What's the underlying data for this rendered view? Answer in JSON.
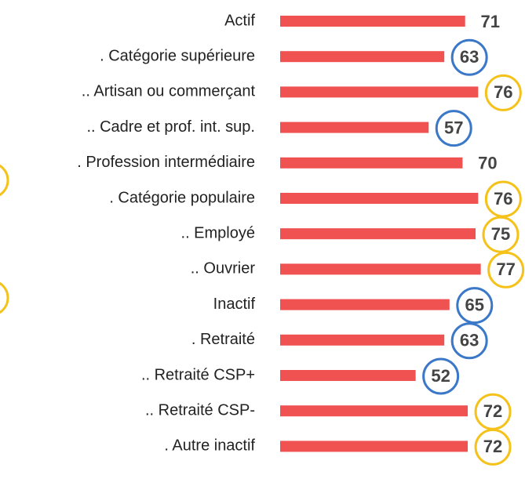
{
  "chart_data": {
    "type": "bar",
    "orientation": "horizontal",
    "categories": [
      "Actif",
      ". Catégorie supérieure",
      ".. Artisan ou commerçant",
      ".. Cadre et prof. int. sup.",
      ". Profession intermédiaire",
      ". Catégorie populaire",
      ".. Employé",
      ".. Ouvrier",
      "Inactif",
      ". Retraité",
      ".. Retraité CSP+",
      ".. Retraité CSP-",
      ". Autre inactif"
    ],
    "values": [
      71,
      63,
      76,
      57,
      70,
      76,
      75,
      77,
      65,
      63,
      52,
      72,
      72
    ],
    "color": "#f05252",
    "circle_colors": [
      null,
      "#3b78c8",
      "#f5c21b",
      "#3b78c8",
      null,
      "#f5c21b",
      "#f5c21b",
      "#f5c21b",
      "#3b78c8",
      "#3b78c8",
      "#3b78c8",
      "#f5c21b",
      "#f5c21b"
    ],
    "xlim": [
      0,
      100
    ]
  }
}
